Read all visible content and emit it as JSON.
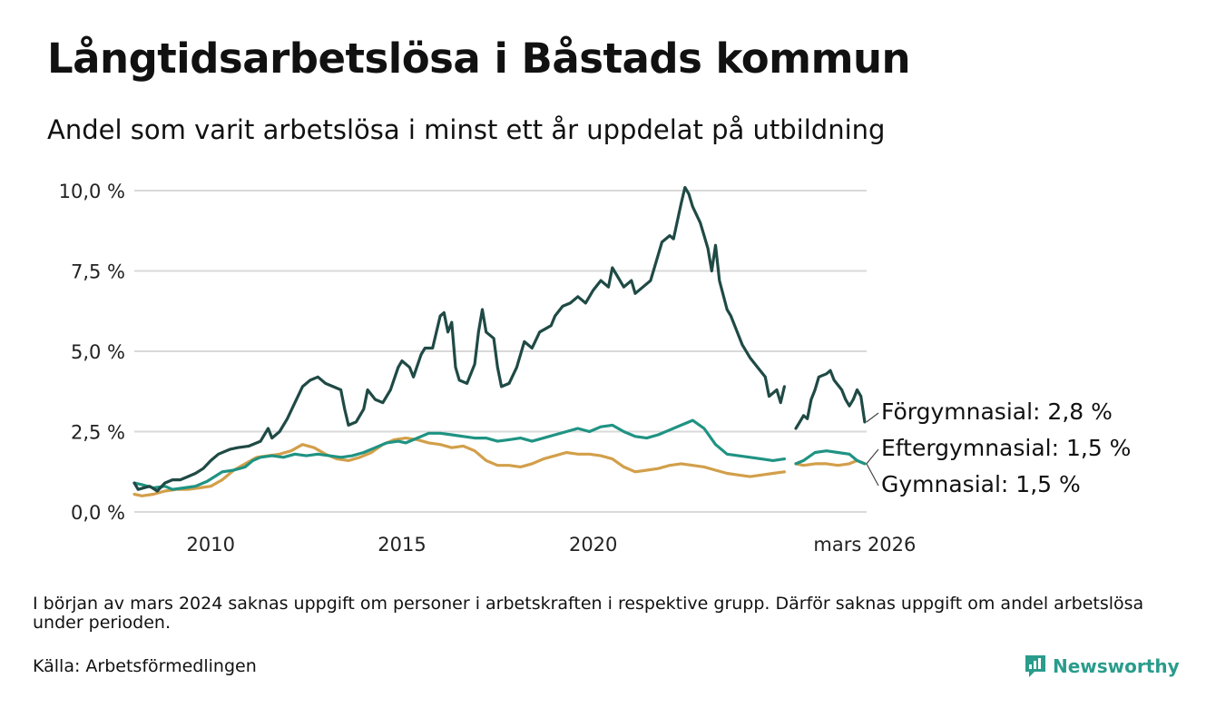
{
  "title": "Långtidsarbetslösa i Båstads kommun",
  "subtitle": "Andel som varit arbetslösa i minst ett år uppdelat på utbildning",
  "footnote": "I början av mars 2024 saknas uppgift om personer i arbetskraften i respektive grupp. Därför saknas uppgift om andel arbetslösa under perioden.",
  "source": "Källa: Arbetsförmedlingen",
  "brand": {
    "name": "Newsworthy",
    "icon": "newsworthy-chart-logo-icon",
    "color": "#2a9c8c"
  },
  "chart_data": {
    "type": "line",
    "title": "Långtidsarbetslösa i Båstads kommun",
    "xlabel": "",
    "ylabel": "",
    "xlim": [
      2008.0,
      2026.2
    ],
    "ylim": [
      0,
      10
    ],
    "grid": true,
    "y_ticks": [
      {
        "value": 0,
        "label": "0,0 %"
      },
      {
        "value": 2.5,
        "label": "2,5 %"
      },
      {
        "value": 5,
        "label": "5,0 %"
      },
      {
        "value": 7.5,
        "label": "7,5 %"
      },
      {
        "value": 10,
        "label": "10,0 %"
      }
    ],
    "x_ticks": [
      {
        "value": 2010,
        "label": "2010"
      },
      {
        "value": 2015,
        "label": "2015"
      },
      {
        "value": 2020,
        "label": "2020"
      },
      {
        "value": 2026.17,
        "label": "mars 2026"
      }
    ],
    "gap": [
      2023.8,
      2024.3
    ],
    "series": [
      {
        "name": "Förgymnasial",
        "label": "Förgymnasial: 2,8 %",
        "color": "#1f4a45",
        "points": [
          [
            2008.0,
            0.9
          ],
          [
            2008.1,
            0.7
          ],
          [
            2008.4,
            0.8
          ],
          [
            2008.6,
            0.65
          ],
          [
            2008.8,
            0.9
          ],
          [
            2009.0,
            1.0
          ],
          [
            2009.2,
            1.0
          ],
          [
            2009.4,
            1.1
          ],
          [
            2009.6,
            1.2
          ],
          [
            2009.8,
            1.35
          ],
          [
            2010.0,
            1.6
          ],
          [
            2010.2,
            1.8
          ],
          [
            2010.5,
            1.95
          ],
          [
            2010.7,
            2.0
          ],
          [
            2011.0,
            2.05
          ],
          [
            2011.3,
            2.2
          ],
          [
            2011.5,
            2.6
          ],
          [
            2011.6,
            2.3
          ],
          [
            2011.8,
            2.5
          ],
          [
            2012.0,
            2.9
          ],
          [
            2012.2,
            3.4
          ],
          [
            2012.4,
            3.9
          ],
          [
            2012.6,
            4.1
          ],
          [
            2012.8,
            4.2
          ],
          [
            2013.0,
            4.0
          ],
          [
            2013.2,
            3.9
          ],
          [
            2013.4,
            3.8
          ],
          [
            2013.5,
            3.2
          ],
          [
            2013.6,
            2.7
          ],
          [
            2013.8,
            2.8
          ],
          [
            2014.0,
            3.2
          ],
          [
            2014.1,
            3.8
          ],
          [
            2014.3,
            3.5
          ],
          [
            2014.5,
            3.4
          ],
          [
            2014.7,
            3.8
          ],
          [
            2014.9,
            4.5
          ],
          [
            2015.0,
            4.7
          ],
          [
            2015.2,
            4.5
          ],
          [
            2015.3,
            4.2
          ],
          [
            2015.5,
            4.9
          ],
          [
            2015.6,
            5.1
          ],
          [
            2015.8,
            5.1
          ],
          [
            2016.0,
            6.1
          ],
          [
            2016.1,
            6.2
          ],
          [
            2016.2,
            5.6
          ],
          [
            2016.3,
            5.9
          ],
          [
            2016.4,
            4.5
          ],
          [
            2016.5,
            4.1
          ],
          [
            2016.7,
            4.0
          ],
          [
            2016.9,
            4.6
          ],
          [
            2017.0,
            5.6
          ],
          [
            2017.1,
            6.3
          ],
          [
            2017.2,
            5.6
          ],
          [
            2017.4,
            5.4
          ],
          [
            2017.5,
            4.5
          ],
          [
            2017.6,
            3.9
          ],
          [
            2017.8,
            4.0
          ],
          [
            2018.0,
            4.5
          ],
          [
            2018.2,
            5.3
          ],
          [
            2018.4,
            5.1
          ],
          [
            2018.6,
            5.6
          ],
          [
            2018.9,
            5.8
          ],
          [
            2019.0,
            6.1
          ],
          [
            2019.2,
            6.4
          ],
          [
            2019.4,
            6.5
          ],
          [
            2019.6,
            6.7
          ],
          [
            2019.8,
            6.5
          ],
          [
            2020.0,
            6.9
          ],
          [
            2020.2,
            7.2
          ],
          [
            2020.4,
            7.0
          ],
          [
            2020.5,
            7.6
          ],
          [
            2020.6,
            7.4
          ],
          [
            2020.8,
            7.0
          ],
          [
            2021.0,
            7.2
          ],
          [
            2021.1,
            6.8
          ],
          [
            2021.3,
            7.0
          ],
          [
            2021.5,
            7.2
          ],
          [
            2021.6,
            7.6
          ],
          [
            2021.8,
            8.4
          ],
          [
            2022.0,
            8.6
          ],
          [
            2022.1,
            8.5
          ],
          [
            2022.3,
            9.6
          ],
          [
            2022.4,
            10.1
          ],
          [
            2022.5,
            9.9
          ],
          [
            2022.6,
            9.5
          ],
          [
            2022.8,
            9.0
          ],
          [
            2023.0,
            8.2
          ],
          [
            2023.1,
            7.5
          ],
          [
            2023.2,
            8.3
          ],
          [
            2023.3,
            7.2
          ],
          [
            2023.5,
            6.3
          ],
          [
            2023.6,
            6.1
          ],
          [
            2023.8,
            5.5
          ],
          [
            2023.9,
            5.2
          ],
          [
            2024.1,
            4.8
          ],
          [
            2024.3,
            4.5
          ],
          [
            2024.5,
            4.2
          ],
          [
            2024.6,
            3.6
          ],
          [
            2024.8,
            3.8
          ],
          [
            2024.9,
            3.4
          ],
          [
            2025.0,
            3.9
          ],
          null,
          [
            2025.3,
            2.6
          ],
          [
            2025.4,
            2.8
          ],
          [
            2025.5,
            3.0
          ],
          [
            2025.6,
            2.9
          ],
          [
            2025.7,
            3.5
          ],
          [
            2025.8,
            3.8
          ],
          [
            2025.9,
            4.2
          ],
          [
            2026.1,
            4.3
          ],
          [
            2026.2,
            4.4
          ],
          [
            2026.3,
            4.1
          ],
          [
            2026.5,
            3.8
          ],
          [
            2026.6,
            3.5
          ],
          [
            2026.7,
            3.3
          ],
          [
            2026.8,
            3.5
          ],
          [
            2026.9,
            3.8
          ],
          [
            2027.0,
            3.6
          ],
          [
            2027.1,
            2.8
          ]
        ]
      },
      {
        "name": "Eftergymnasial",
        "label": "Eftergymnasial: 1,5 %",
        "color": "#1f9383",
        "points": [
          [
            2008.0,
            0.9
          ],
          [
            2008.2,
            0.85
          ],
          [
            2008.5,
            0.75
          ],
          [
            2008.8,
            0.8
          ],
          [
            2009.0,
            0.7
          ],
          [
            2009.3,
            0.75
          ],
          [
            2009.6,
            0.8
          ],
          [
            2009.9,
            0.95
          ],
          [
            2010.1,
            1.1
          ],
          [
            2010.3,
            1.25
          ],
          [
            2010.6,
            1.3
          ],
          [
            2010.9,
            1.4
          ],
          [
            2011.1,
            1.6
          ],
          [
            2011.3,
            1.7
          ],
          [
            2011.6,
            1.75
          ],
          [
            2011.9,
            1.7
          ],
          [
            2012.2,
            1.8
          ],
          [
            2012.5,
            1.75
          ],
          [
            2012.8,
            1.8
          ],
          [
            2013.1,
            1.75
          ],
          [
            2013.4,
            1.7
          ],
          [
            2013.7,
            1.75
          ],
          [
            2014.0,
            1.85
          ],
          [
            2014.3,
            2.0
          ],
          [
            2014.6,
            2.15
          ],
          [
            2014.9,
            2.2
          ],
          [
            2015.1,
            2.15
          ],
          [
            2015.4,
            2.3
          ],
          [
            2015.7,
            2.45
          ],
          [
            2016.0,
            2.45
          ],
          [
            2016.3,
            2.4
          ],
          [
            2016.6,
            2.35
          ],
          [
            2016.9,
            2.3
          ],
          [
            2017.2,
            2.3
          ],
          [
            2017.5,
            2.2
          ],
          [
            2017.8,
            2.25
          ],
          [
            2018.1,
            2.3
          ],
          [
            2018.4,
            2.2
          ],
          [
            2018.7,
            2.3
          ],
          [
            2019.0,
            2.4
          ],
          [
            2019.3,
            2.5
          ],
          [
            2019.6,
            2.6
          ],
          [
            2019.9,
            2.5
          ],
          [
            2020.2,
            2.65
          ],
          [
            2020.5,
            2.7
          ],
          [
            2020.8,
            2.5
          ],
          [
            2021.1,
            2.35
          ],
          [
            2021.4,
            2.3
          ],
          [
            2021.7,
            2.4
          ],
          [
            2022.0,
            2.55
          ],
          [
            2022.3,
            2.7
          ],
          [
            2022.6,
            2.85
          ],
          [
            2022.9,
            2.6
          ],
          [
            2023.2,
            2.1
          ],
          [
            2023.5,
            1.8
          ],
          [
            2023.8,
            1.75
          ],
          [
            2024.1,
            1.7
          ],
          [
            2024.4,
            1.65
          ],
          [
            2024.7,
            1.6
          ],
          [
            2025.0,
            1.65
          ],
          null,
          [
            2025.3,
            1.5
          ],
          [
            2025.5,
            1.6
          ],
          [
            2025.8,
            1.85
          ],
          [
            2026.1,
            1.9
          ],
          [
            2026.4,
            1.85
          ],
          [
            2026.7,
            1.8
          ],
          [
            2026.9,
            1.6
          ],
          [
            2027.1,
            1.5
          ]
        ]
      },
      {
        "name": "Gymnasial",
        "label": "Gymnasial: 1,5 %",
        "color": "#d29f4a",
        "points": [
          [
            2008.0,
            0.55
          ],
          [
            2008.2,
            0.5
          ],
          [
            2008.5,
            0.55
          ],
          [
            2008.8,
            0.65
          ],
          [
            2009.1,
            0.7
          ],
          [
            2009.4,
            0.7
          ],
          [
            2009.7,
            0.75
          ],
          [
            2010.0,
            0.8
          ],
          [
            2010.3,
            1.0
          ],
          [
            2010.6,
            1.3
          ],
          [
            2010.9,
            1.5
          ],
          [
            2011.2,
            1.7
          ],
          [
            2011.5,
            1.75
          ],
          [
            2011.8,
            1.8
          ],
          [
            2012.1,
            1.9
          ],
          [
            2012.4,
            2.1
          ],
          [
            2012.7,
            2.0
          ],
          [
            2013.0,
            1.8
          ],
          [
            2013.3,
            1.65
          ],
          [
            2013.6,
            1.6
          ],
          [
            2013.9,
            1.7
          ],
          [
            2014.2,
            1.85
          ],
          [
            2014.5,
            2.1
          ],
          [
            2014.8,
            2.25
          ],
          [
            2015.1,
            2.3
          ],
          [
            2015.4,
            2.25
          ],
          [
            2015.7,
            2.15
          ],
          [
            2016.0,
            2.1
          ],
          [
            2016.3,
            2.0
          ],
          [
            2016.6,
            2.05
          ],
          [
            2016.9,
            1.9
          ],
          [
            2017.2,
            1.6
          ],
          [
            2017.5,
            1.45
          ],
          [
            2017.8,
            1.45
          ],
          [
            2018.1,
            1.4
          ],
          [
            2018.4,
            1.5
          ],
          [
            2018.7,
            1.65
          ],
          [
            2019.0,
            1.75
          ],
          [
            2019.3,
            1.85
          ],
          [
            2019.6,
            1.8
          ],
          [
            2019.9,
            1.8
          ],
          [
            2020.2,
            1.75
          ],
          [
            2020.5,
            1.65
          ],
          [
            2020.8,
            1.4
          ],
          [
            2021.1,
            1.25
          ],
          [
            2021.4,
            1.3
          ],
          [
            2021.7,
            1.35
          ],
          [
            2022.0,
            1.45
          ],
          [
            2022.3,
            1.5
          ],
          [
            2022.6,
            1.45
          ],
          [
            2022.9,
            1.4
          ],
          [
            2023.2,
            1.3
          ],
          [
            2023.5,
            1.2
          ],
          [
            2023.8,
            1.15
          ],
          [
            2024.1,
            1.1
          ],
          [
            2024.4,
            1.15
          ],
          [
            2024.7,
            1.2
          ],
          [
            2025.0,
            1.25
          ],
          null,
          [
            2025.3,
            1.5
          ],
          [
            2025.5,
            1.45
          ],
          [
            2025.8,
            1.5
          ],
          [
            2026.1,
            1.5
          ],
          [
            2026.4,
            1.45
          ],
          [
            2026.7,
            1.5
          ],
          [
            2026.9,
            1.6
          ],
          [
            2027.1,
            1.5
          ]
        ]
      }
    ]
  }
}
